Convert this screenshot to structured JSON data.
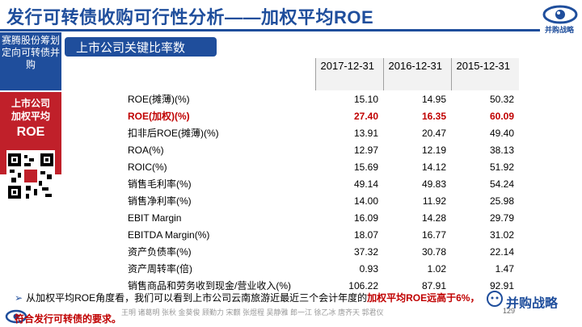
{
  "slide": {
    "title": "发行可转债收购可行性分析——加权平均ROE",
    "logo_text": "并购战略",
    "section_title": "上市公司关键比率数",
    "page_number": "129"
  },
  "sidebar": {
    "item1": "赛腾股份筹划定向可转债并购",
    "item2_line1": "上市公司",
    "item2_line2": "加权平均",
    "item2_line3": "ROE"
  },
  "table": {
    "headers": [
      "2017-12-31",
      "2016-12-31",
      "2015-12-31"
    ],
    "rows": [
      {
        "name": "ROE(摊薄)(%)",
        "values": [
          "15.10",
          "14.95",
          "50.32"
        ],
        "highlight": false
      },
      {
        "name": "ROE(加权)(%)",
        "values": [
          "27.40",
          "16.35",
          "60.09"
        ],
        "highlight": true
      },
      {
        "name": "扣非后ROE(摊薄)(%)",
        "values": [
          "13.91",
          "20.47",
          "49.40"
        ],
        "highlight": false
      },
      {
        "name": "ROA(%)",
        "values": [
          "12.97",
          "12.19",
          "38.13"
        ],
        "highlight": false
      },
      {
        "name": "ROIC(%)",
        "values": [
          "15.69",
          "14.12",
          "51.92"
        ],
        "highlight": false
      },
      {
        "name": "销售毛利率(%)",
        "values": [
          "49.14",
          "49.83",
          "54.24"
        ],
        "highlight": false
      },
      {
        "name": "销售净利率(%)",
        "values": [
          "14.00",
          "11.92",
          "25.98"
        ],
        "highlight": false
      },
      {
        "name": "EBIT Margin",
        "values": [
          "16.09",
          "14.28",
          "29.79"
        ],
        "highlight": false
      },
      {
        "name": "EBITDA Margin(%)",
        "values": [
          "18.07",
          "16.77",
          "31.02"
        ],
        "highlight": false
      },
      {
        "name": "资产负债率(%)",
        "values": [
          "37.32",
          "30.78",
          "22.14"
        ],
        "highlight": false
      },
      {
        "name": "资产周转率(倍)",
        "values": [
          "0.93",
          "1.02",
          "1.47"
        ],
        "highlight": false
      },
      {
        "name": "销售商品和劳务收到现金/营业收入(%)",
        "values": [
          "106.22",
          "87.91",
          "92.91"
        ],
        "highlight": false
      }
    ]
  },
  "bullet": {
    "arrow": "➢",
    "text_normal": "从加权平均ROE角度看，我们可以看到上市公司云南旅游近最近三个会计年度的",
    "text_red": "加权平均ROE",
    "text_tail": "远高于6%，",
    "line2": "符合发行可转债的要求。"
  },
  "footer": {
    "names": "王明 诸葛明 张秋 金葵俊 顾勤力 宋麒 张煜程 吴静雅 郎一江 徐乙冰 唐齐天 郭君仪"
  },
  "watermark": {
    "text": "并购战略"
  },
  "colors": {
    "brand_blue": "#1f4e9c",
    "accent_red": "#c00000",
    "sidebar_red": "#c0202a"
  }
}
